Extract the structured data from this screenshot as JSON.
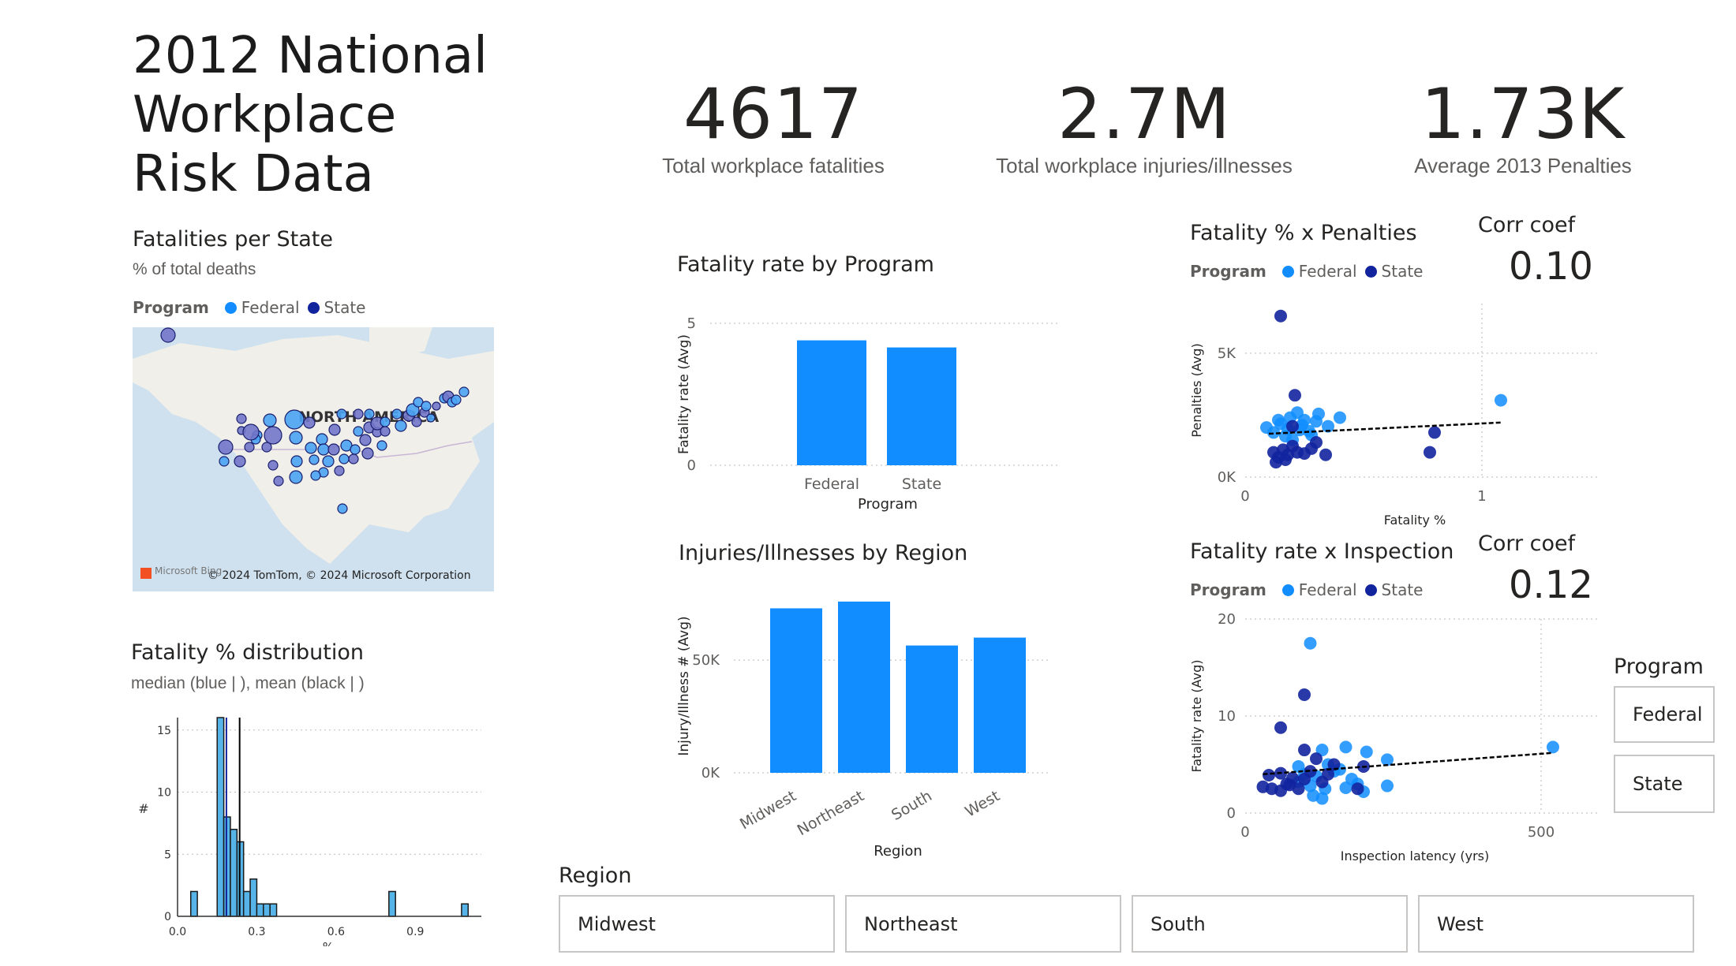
{
  "title": "2012 National\nWorkplace\nRisk Data",
  "kpis": [
    {
      "value": "4617",
      "label": "Total workplace fatalities"
    },
    {
      "value": "2.7M",
      "label": "Total workplace injuries/illnesses"
    },
    {
      "value": "1.73K",
      "label": "Average 2013 Penalties"
    }
  ],
  "colors": {
    "federal": "#118dff",
    "state": "#12239e",
    "bar": "#118dff",
    "hist": "#56b4e9"
  },
  "legend": {
    "label": "Program",
    "federal": "Federal",
    "state": "State"
  },
  "map": {
    "title": "Fatalities per State",
    "subtitle": "% of total deaths",
    "region_label": "NORTH AMERICA",
    "attribution": "© 2024 TomTom, © 2024 Microsoft Corporation",
    "provider": "Microsoft Bing"
  },
  "fatality_by_program": {
    "title": "Fatality rate by Program",
    "chart_data": {
      "type": "bar",
      "categories": [
        "Federal",
        "State"
      ],
      "values": [
        4.4,
        4.15
      ],
      "xlabel": "Program",
      "ylabel": "Fatality rate (Avg)",
      "ylim": [
        0,
        5
      ],
      "yticks": [
        "0",
        "5"
      ]
    }
  },
  "injuries_by_region": {
    "title": "Injuries/Illnesses by Region",
    "chart_data": {
      "type": "bar",
      "categories": [
        "Midwest",
        "Northeast",
        "South",
        "West"
      ],
      "values": [
        73000,
        76000,
        56500,
        60000
      ],
      "xlabel": "Region",
      "ylabel": "Injury/Illness # (Avg)",
      "ylim": [
        0,
        75000
      ],
      "yticks": [
        "0K",
        "50K"
      ]
    }
  },
  "fatality_distribution": {
    "title": "Fatality % distribution",
    "subtitle": "median (blue | ), mean (black | )",
    "chart_data": {
      "type": "bar",
      "bin_width": 0.025,
      "bin_starts": [
        0.05,
        0.075,
        0.1,
        0.125,
        0.15,
        0.175,
        0.2,
        0.225,
        0.25,
        0.275,
        0.3,
        0.325,
        0.35,
        0.375,
        0.4,
        0.425,
        0.8,
        1.075
      ],
      "values": [
        2,
        0,
        0,
        0,
        16,
        8,
        7,
        6,
        2,
        3,
        1,
        1,
        1,
        0,
        0,
        0,
        2,
        1
      ],
      "median": 0.185,
      "mean": 0.235,
      "xlabel": "%",
      "ylabel": "#",
      "xlim": [
        0,
        1.15
      ],
      "ylim": [
        0,
        16
      ],
      "xticks": [
        "0.0",
        "0.3",
        "0.6",
        "0.9"
      ],
      "yticks": [
        "0",
        "5",
        "10",
        "15"
      ]
    }
  },
  "scatter_penalties": {
    "title": "Fatality % x Penalties",
    "corr_label": "Corr coef",
    "corr_value": "0.10",
    "chart_data": {
      "type": "scatter",
      "xlabel": "Fatality %",
      "ylabel": "Penalties (Avg)",
      "xlim": [
        0,
        1.5
      ],
      "ylim": [
        0,
        7000
      ],
      "xticks": [
        "0",
        "1"
      ],
      "yticks": [
        "0K",
        "5K"
      ],
      "trend": [
        [
          0.1,
          1750
        ],
        [
          1.08,
          2200
        ]
      ],
      "series": [
        {
          "name": "Federal",
          "points": [
            [
              0.09,
              2000
            ],
            [
              0.12,
              1800
            ],
            [
              0.15,
              2150
            ],
            [
              0.17,
              1650
            ],
            [
              0.19,
              2400
            ],
            [
              0.2,
              1500
            ],
            [
              0.22,
              2600
            ],
            [
              0.23,
              1900
            ],
            [
              0.25,
              2300
            ],
            [
              0.27,
              1850
            ],
            [
              0.3,
              2250
            ],
            [
              0.31,
              2550
            ],
            [
              0.28,
              1700
            ],
            [
              0.35,
              2050
            ],
            [
              0.4,
              2400
            ],
            [
              0.18,
              1950
            ],
            [
              0.14,
              2300
            ],
            [
              0.24,
              2100
            ],
            [
              1.08,
              3100
            ]
          ]
        },
        {
          "name": "State",
          "points": [
            [
              0.15,
              6500
            ],
            [
              0.21,
              3300
            ],
            [
              0.12,
              1000
            ],
            [
              0.14,
              800
            ],
            [
              0.16,
              1100
            ],
            [
              0.18,
              900
            ],
            [
              0.2,
              1250
            ],
            [
              0.22,
              1000
            ],
            [
              0.25,
              950
            ],
            [
              0.28,
              1150
            ],
            [
              0.34,
              900
            ],
            [
              0.13,
              600
            ],
            [
              0.17,
              700
            ],
            [
              0.8,
              1800
            ],
            [
              0.78,
              1000
            ],
            [
              0.2,
              2050
            ],
            [
              0.3,
              1400
            ]
          ]
        }
      ]
    }
  },
  "scatter_inspection": {
    "title": "Fatality rate x Inspection",
    "corr_label": "Corr coef",
    "corr_value": "0.12",
    "chart_data": {
      "type": "scatter",
      "xlabel": "Inspection latency (yrs)",
      "ylabel": "Fatality rate (Avg)",
      "xlim": [
        0,
        600
      ],
      "ylim": [
        0,
        20
      ],
      "xticks": [
        "0",
        "500"
      ],
      "yticks": [
        "0",
        "10",
        "20"
      ],
      "trend": [
        [
          30,
          4.0
        ],
        [
          520,
          6.2
        ]
      ],
      "series": [
        {
          "name": "Federal",
          "points": [
            [
              110,
              17.5
            ],
            [
              130,
              6.5
            ],
            [
              170,
              6.8
            ],
            [
              205,
              6.3
            ],
            [
              240,
              5.5
            ],
            [
              140,
              5.0
            ],
            [
              150,
              4.3
            ],
            [
              100,
              4.0
            ],
            [
              120,
              3.8
            ],
            [
              160,
              4.5
            ],
            [
              180,
              3.5
            ],
            [
              90,
              3.2
            ],
            [
              110,
              2.8
            ],
            [
              135,
              2.5
            ],
            [
              190,
              3.0
            ],
            [
              240,
              2.8
            ],
            [
              115,
              1.8
            ],
            [
              130,
              1.5
            ],
            [
              170,
              2.6
            ],
            [
              520,
              6.8
            ],
            [
              90,
              4.8
            ],
            [
              200,
              2.2
            ]
          ]
        },
        {
          "name": "State",
          "points": [
            [
              100,
              12.2
            ],
            [
              60,
              8.8
            ],
            [
              100,
              6.5
            ],
            [
              120,
              5.6
            ],
            [
              150,
              5.0
            ],
            [
              200,
              4.8
            ],
            [
              40,
              3.9
            ],
            [
              60,
              4.1
            ],
            [
              80,
              3.6
            ],
            [
              30,
              2.7
            ],
            [
              45,
              2.5
            ],
            [
              70,
              3.0
            ],
            [
              100,
              3.5
            ],
            [
              90,
              2.5
            ],
            [
              60,
              2.3
            ],
            [
              130,
              3.2
            ],
            [
              190,
              2.5
            ],
            [
              140,
              4.0
            ],
            [
              75,
              2.9
            ],
            [
              110,
              4.3
            ]
          ]
        }
      ]
    }
  },
  "program_slicer": {
    "title": "Program",
    "options": [
      "Federal",
      "State"
    ]
  },
  "region_slicer": {
    "title": "Region",
    "options": [
      "Midwest",
      "Northeast",
      "South",
      "West"
    ]
  }
}
